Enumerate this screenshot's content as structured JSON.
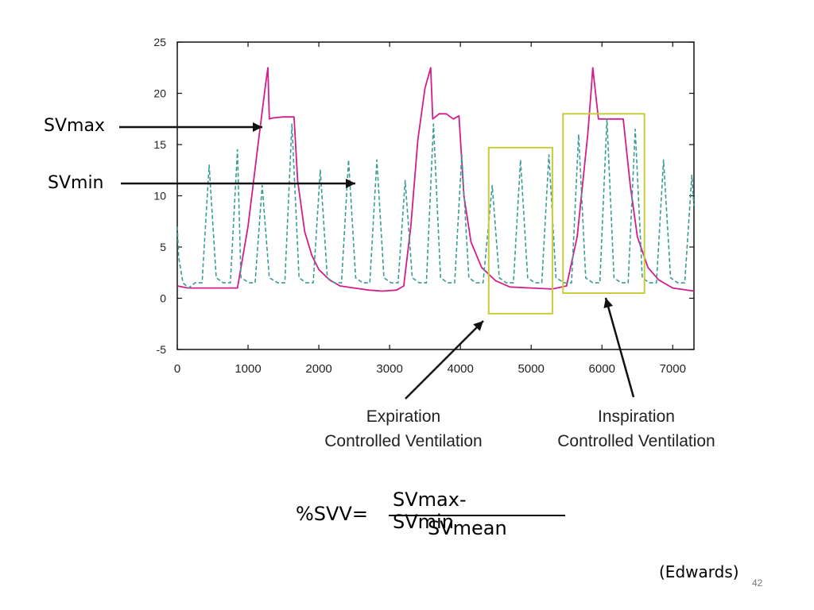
{
  "chart_data": {
    "type": "line",
    "xlim": [
      0,
      7300
    ],
    "ylim": [
      -5,
      25
    ],
    "x_ticks": [
      0,
      1000,
      2000,
      3000,
      4000,
      5000,
      6000,
      7000
    ],
    "y_ticks": [
      -5,
      0,
      5,
      10,
      15,
      20,
      25
    ],
    "grid": false,
    "series": [
      {
        "style": "solid",
        "color": "#d21e8a",
        "x": [
          0,
          150,
          300,
          500,
          700,
          850,
          1000,
          1150,
          1250,
          1280,
          1300,
          1350,
          1500,
          1650,
          1700,
          1800,
          1900,
          2000,
          2150,
          2300,
          2500,
          2700,
          2900,
          3100,
          3200,
          3300,
          3400,
          3500,
          3580,
          3610,
          3700,
          3800,
          3900,
          3980,
          4050,
          4150,
          4300,
          4500,
          4700,
          5000,
          5300,
          5500,
          5650,
          5800,
          5850,
          5870,
          5950,
          6100,
          6200,
          6300,
          6400,
          6500,
          6650,
          6800,
          7000,
          7300
        ],
        "y": [
          1.2,
          1.0,
          1.0,
          1.0,
          1.0,
          1.0,
          7.0,
          15.5,
          21.0,
          22.5,
          17.5,
          17.6,
          17.7,
          17.7,
          11.5,
          6.5,
          4.2,
          2.8,
          1.8,
          1.2,
          1.0,
          0.8,
          0.7,
          0.8,
          1.2,
          7.0,
          15.5,
          20.5,
          22.5,
          17.5,
          18.0,
          18.0,
          17.5,
          17.8,
          10.0,
          5.5,
          3.0,
          1.7,
          1.1,
          1.0,
          0.9,
          1.2,
          6.0,
          16.0,
          20.5,
          22.5,
          17.5,
          17.5,
          17.5,
          17.5,
          11.0,
          6.0,
          3.0,
          1.8,
          1.0,
          0.7
        ]
      },
      {
        "style": "dashed",
        "color": "#3a9d95",
        "x": [
          0,
          20,
          80,
          160,
          250,
          350,
          450,
          550,
          650,
          750,
          850,
          900,
          1020,
          1100,
          1200,
          1300,
          1420,
          1520,
          1620,
          1720,
          1820,
          1920,
          2020,
          2120,
          2220,
          2320,
          2420,
          2520,
          2620,
          2720,
          2820,
          2920,
          3020,
          3120,
          3220,
          3320,
          3420,
          3520,
          3620,
          3720,
          3820,
          3920,
          4020,
          4120,
          4220,
          4320,
          4450,
          4550,
          4650,
          4750,
          4850,
          4950,
          5050,
          5150,
          5250,
          5350,
          5470,
          5570,
          5670,
          5770,
          5870,
          5970,
          6070,
          6170,
          6270,
          6370,
          6470,
          6570,
          6670,
          6770,
          6870,
          6970,
          7070,
          7170,
          7270,
          7300
        ],
        "y": [
          7,
          4,
          1.5,
          1.0,
          1.5,
          1.5,
          13.0,
          2.0,
          1.5,
          1.5,
          14.5,
          2.0,
          1.5,
          1.5,
          11.0,
          2.0,
          1.5,
          1.5,
          17.0,
          2.0,
          1.5,
          1.5,
          12.5,
          2.0,
          1.5,
          1.5,
          13.5,
          2.0,
          1.5,
          1.5,
          13.5,
          2.0,
          1.5,
          1.5,
          11.5,
          2.0,
          1.5,
          1.5,
          17.0,
          2.0,
          1.5,
          1.5,
          14.0,
          2.0,
          1.5,
          1.5,
          11.0,
          2.0,
          1.5,
          1.5,
          13.5,
          2.0,
          1.5,
          1.5,
          14.0,
          2.0,
          1.5,
          1.5,
          16.0,
          2.0,
          1.5,
          1.5,
          17.5,
          2.0,
          1.5,
          1.5,
          16.5,
          2.0,
          1.5,
          1.5,
          13.5,
          2.0,
          1.5,
          1.5,
          12.0,
          9.0
        ]
      }
    ],
    "highlight_boxes": [
      {
        "name": "expiration",
        "x": [
          4400,
          5300
        ],
        "y": [
          -1.5,
          14.7
        ],
        "color": "#c9cc3a"
      },
      {
        "name": "inspiration",
        "x": [
          5450,
          6600
        ],
        "y": [
          0.5,
          18.0
        ],
        "color": "#c9cc3a"
      }
    ]
  },
  "labels": {
    "svmax": "SVmax",
    "svmin": "SVmin",
    "expiration_line1": "Expiration",
    "expiration_line2": "Controlled Ventilation",
    "inspiration_line1": "Inspiration",
    "inspiration_line2": "Controlled Ventilation"
  },
  "formula": {
    "lhs": "%SVV=",
    "numerator": "SVmax-SVmin",
    "denominator": "SVmean"
  },
  "credit": "(Edwards)",
  "page_number": "42"
}
